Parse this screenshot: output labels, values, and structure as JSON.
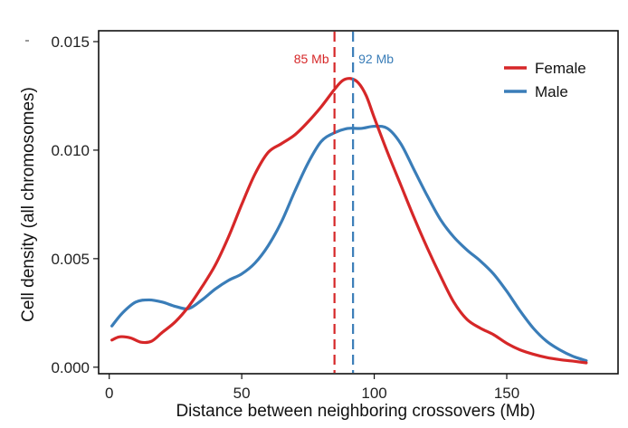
{
  "chart_data": {
    "type": "line",
    "title": "",
    "xlabel": "Distance between neighboring crossovers (Mb)",
    "ylabel": "Cell density (all chromosomes)",
    "xlim": [
      -4,
      192
    ],
    "ylim": [
      -0.0003,
      0.0155
    ],
    "x_ticks": [
      0,
      50,
      100,
      150
    ],
    "x_tick_labels": [
      "0",
      "50",
      "100",
      "150"
    ],
    "y_ticks": [
      0.0,
      0.005,
      0.01,
      0.015
    ],
    "y_tick_labels": [
      "0.000",
      "0.005",
      "0.010",
      "0.015"
    ],
    "grid": false,
    "legend_position": "top-right",
    "colors": {
      "female": "#d62728",
      "male": "#3a7db8"
    },
    "series": [
      {
        "name": "Female",
        "color": "#d62728",
        "x": [
          1,
          4,
          8,
          12,
          16,
          20,
          25,
          30,
          35,
          40,
          45,
          50,
          55,
          60,
          65,
          70,
          75,
          80,
          85,
          88,
          91,
          94,
          97,
          100,
          105,
          110,
          115,
          120,
          125,
          130,
          135,
          140,
          145,
          150,
          155,
          160,
          165,
          170,
          175,
          180
        ],
        "values": [
          0.00125,
          0.0014,
          0.00135,
          0.00115,
          0.0012,
          0.0016,
          0.0021,
          0.0028,
          0.0037,
          0.0047,
          0.006,
          0.0075,
          0.0089,
          0.0099,
          0.0103,
          0.0107,
          0.0113,
          0.012,
          0.0128,
          0.0132,
          0.0133,
          0.0131,
          0.0125,
          0.0115,
          0.0099,
          0.0084,
          0.0069,
          0.0055,
          0.0042,
          0.003,
          0.0022,
          0.0018,
          0.0015,
          0.0011,
          0.0008,
          0.0006,
          0.00045,
          0.00035,
          0.00028,
          0.0002
        ]
      },
      {
        "name": "Male",
        "color": "#3a7db8",
        "x": [
          1,
          5,
          10,
          15,
          20,
          25,
          30,
          35,
          40,
          45,
          50,
          55,
          60,
          65,
          70,
          75,
          80,
          85,
          90,
          95,
          100,
          105,
          110,
          115,
          120,
          125,
          130,
          135,
          140,
          145,
          150,
          155,
          160,
          165,
          170,
          175,
          180
        ],
        "values": [
          0.0019,
          0.0025,
          0.003,
          0.0031,
          0.003,
          0.0028,
          0.0027,
          0.0031,
          0.0036,
          0.004,
          0.0043,
          0.0048,
          0.0056,
          0.0067,
          0.0081,
          0.0094,
          0.0104,
          0.0108,
          0.011,
          0.011,
          0.0111,
          0.011,
          0.0103,
          0.0091,
          0.0079,
          0.0068,
          0.006,
          0.0054,
          0.0049,
          0.0043,
          0.0035,
          0.0026,
          0.0018,
          0.0012,
          0.0008,
          0.0005,
          0.0003
        ]
      }
    ],
    "vlines": [
      {
        "name": "Female",
        "x": 85,
        "label": "85 Mb",
        "color": "#d62728"
      },
      {
        "name": "Male",
        "x": 92,
        "label": "92 Mb",
        "color": "#3a7db8"
      }
    ]
  }
}
